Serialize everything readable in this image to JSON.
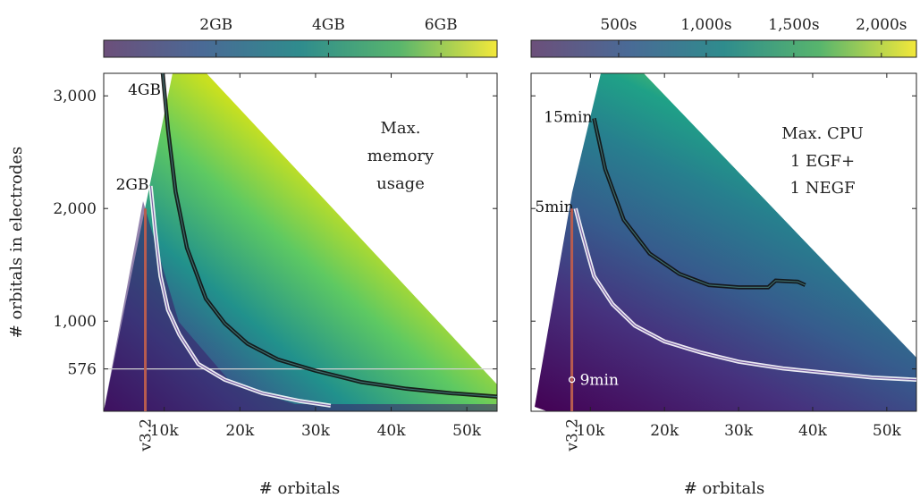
{
  "chart_data": [
    {
      "type": "heatmap",
      "annotation_lines": [
        "Max.",
        "memory",
        "usage"
      ],
      "colorbar": {
        "range": [
          0,
          7
        ],
        "unit": "GB",
        "tick_values": [
          2,
          4,
          6
        ],
        "tick_labels": [
          "2GB",
          "4GB",
          "6GB"
        ]
      },
      "xlabel": "# orbitals",
      "ylabel": "# orbitals in electrodes",
      "xlim": [
        2000,
        54000
      ],
      "ylim": [
        200,
        3200
      ],
      "xticks": [
        10000,
        20000,
        30000,
        40000,
        50000
      ],
      "xtick_labels": [
        "10k",
        "20k",
        "30k",
        "40k",
        "50k"
      ],
      "yticks": [
        576,
        1000,
        2000,
        3000
      ],
      "ytick_labels": [
        "576",
        "1,000",
        "2,000",
        "3,000"
      ],
      "reference_line": {
        "label": "v3.2",
        "x": 7500,
        "y_top": 2000
      },
      "horizontal_line": {
        "y": 576
      },
      "contours": [
        {
          "label": "4GB",
          "color": "#111111",
          "points": [
            [
              9800,
              3200
            ],
            [
              10500,
              2700
            ],
            [
              11500,
              2150
            ],
            [
              13000,
              1650
            ],
            [
              15500,
              1200
            ],
            [
              18000,
              980
            ],
            [
              21000,
              800
            ],
            [
              25000,
              660
            ],
            [
              30000,
              560
            ],
            [
              36000,
              460
            ],
            [
              42000,
              400
            ],
            [
              48000,
              360
            ],
            [
              54000,
              330
            ]
          ]
        },
        {
          "label": "2GB",
          "color": "#ffffff",
          "points": [
            [
              8200,
              2200
            ],
            [
              8800,
              1800
            ],
            [
              9500,
              1400
            ],
            [
              10500,
              1100
            ],
            [
              12000,
              880
            ],
            [
              14500,
              620
            ],
            [
              18000,
              480
            ],
            [
              23000,
              360
            ],
            [
              28000,
              290
            ],
            [
              32000,
              250
            ]
          ]
        }
      ]
    },
    {
      "type": "heatmap",
      "annotation_lines": [
        "Max. CPU",
        "1 EGF+",
        "1 NEGF"
      ],
      "colorbar": {
        "range": [
          0,
          2200
        ],
        "unit": "s",
        "tick_values": [
          500,
          1000,
          1500,
          2000
        ],
        "tick_labels": [
          "500s",
          "1,000s",
          "1,500s",
          "2,000s"
        ]
      },
      "xlabel": "# orbitals",
      "xlim": [
        2000,
        54000
      ],
      "ylim": [
        200,
        3200
      ],
      "xticks": [
        10000,
        20000,
        30000,
        40000,
        50000
      ],
      "xtick_labels": [
        "10k",
        "20k",
        "30k",
        "40k",
        "50k"
      ],
      "reference_line": {
        "label": "v3.2",
        "x": 7500,
        "y_top": 2000
      },
      "marker": {
        "label": "9min",
        "x": 7500,
        "y": 480
      },
      "contours": [
        {
          "label": "15min",
          "color": "#111111",
          "points": [
            [
              10500,
              2800
            ],
            [
              12000,
              2350
            ],
            [
              14500,
              1900
            ],
            [
              18000,
              1600
            ],
            [
              22000,
              1420
            ],
            [
              26000,
              1320
            ],
            [
              30000,
              1300
            ],
            [
              34000,
              1300
            ],
            [
              35000,
              1360
            ],
            [
              38000,
              1350
            ],
            [
              39000,
              1320
            ]
          ]
        },
        {
          "label": "5min",
          "color": "#ffffff",
          "points": [
            [
              8000,
              2000
            ],
            [
              9000,
              1750
            ],
            [
              10500,
              1400
            ],
            [
              13000,
              1150
            ],
            [
              16000,
              960
            ],
            [
              20000,
              820
            ],
            [
              25000,
              720
            ],
            [
              30000,
              640
            ],
            [
              36000,
              580
            ],
            [
              42000,
              540
            ],
            [
              48000,
              500
            ],
            [
              54000,
              480
            ]
          ]
        }
      ]
    }
  ]
}
